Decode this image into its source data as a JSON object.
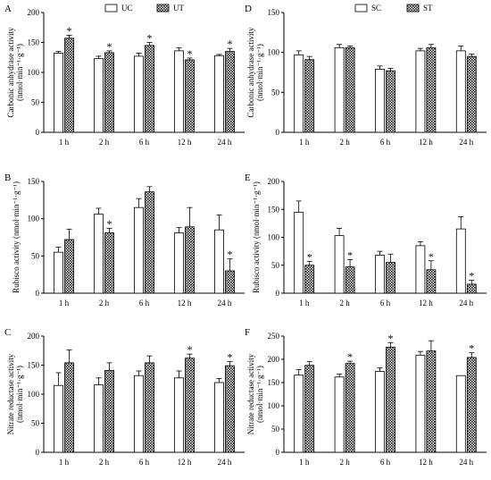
{
  "chart_data": [
    {
      "panel": "A",
      "type": "bar",
      "ylabel": "Carbonic anhydrase activity",
      "ylabel_unit": "(nmol·min⁻¹·g⁻¹)",
      "ylim": [
        0,
        200
      ],
      "yticks": [
        0,
        50,
        100,
        150,
        200
      ],
      "categories": [
        "1 h",
        "2 h",
        "6 h",
        "12 h",
        "24 h"
      ],
      "series": [
        {
          "name": "UC",
          "pattern": "open",
          "values": [
            132,
            123,
            127,
            136,
            128
          ],
          "errors": [
            3,
            4,
            5,
            5,
            2
          ],
          "significant": [
            false,
            false,
            false,
            false,
            false
          ]
        },
        {
          "name": "UT",
          "pattern": "hatched",
          "values": [
            157,
            133,
            145,
            121,
            135
          ],
          "errors": [
            5,
            3,
            5,
            3,
            5
          ],
          "significant": [
            true,
            true,
            true,
            true,
            true
          ]
        }
      ],
      "marker": "*",
      "legend_position": "top"
    },
    {
      "panel": "B",
      "type": "bar",
      "ylabel": "Rubisco activity (nmol·min⁻¹·g⁻¹)",
      "ylim": [
        0,
        150
      ],
      "yticks": [
        0,
        50,
        100,
        150
      ],
      "categories": [
        "1 h",
        "2 h",
        "6 h",
        "12 h",
        "24 h"
      ],
      "series": [
        {
          "name": "UC",
          "pattern": "open",
          "values": [
            55,
            106,
            115,
            81,
            85
          ],
          "errors": [
            7,
            8,
            12,
            7,
            20
          ],
          "significant": [
            false,
            false,
            false,
            false,
            false
          ]
        },
        {
          "name": "UT",
          "pattern": "hatched",
          "values": [
            72,
            81,
            136,
            89,
            30
          ],
          "errors": [
            14,
            6,
            7,
            26,
            16
          ],
          "significant": [
            false,
            true,
            false,
            false,
            true
          ]
        }
      ],
      "marker": "*"
    },
    {
      "panel": "C",
      "type": "bar",
      "ylabel": "Nitrate reductase activity",
      "ylabel_unit": "(nmol·min⁻¹·g⁻¹)",
      "ylim": [
        0,
        200
      ],
      "yticks": [
        0,
        50,
        100,
        150,
        200
      ],
      "categories": [
        "1 h",
        "2 h",
        "6 h",
        "12 h",
        "24 h"
      ],
      "series": [
        {
          "name": "UC",
          "pattern": "open",
          "values": [
            115,
            116,
            132,
            128,
            120
          ],
          "errors": [
            22,
            12,
            8,
            12,
            7
          ],
          "significant": [
            false,
            false,
            false,
            false,
            false
          ]
        },
        {
          "name": "UT",
          "pattern": "hatched",
          "values": [
            154,
            141,
            154,
            162,
            149
          ],
          "errors": [
            22,
            13,
            12,
            7,
            7
          ],
          "significant": [
            false,
            false,
            false,
            true,
            true
          ]
        }
      ],
      "marker": "*"
    },
    {
      "panel": "D",
      "type": "bar",
      "ylabel": "Carbonic anhydrase activity",
      "ylabel_unit": "(nmol·min⁻¹·g⁻¹)",
      "ylim": [
        0,
        150
      ],
      "yticks": [
        0,
        50,
        100,
        150
      ],
      "categories": [
        "1 h",
        "2 h",
        "6 h",
        "12 h",
        "24 h"
      ],
      "series": [
        {
          "name": "SC",
          "pattern": "open",
          "values": [
            97,
            106,
            79,
            102,
            102
          ],
          "errors": [
            5,
            4,
            4,
            3,
            6
          ],
          "significant": [
            false,
            false,
            false,
            false,
            false
          ]
        },
        {
          "name": "ST",
          "pattern": "hatched",
          "values": [
            91,
            106,
            77,
            106,
            95
          ],
          "errors": [
            4,
            2,
            3,
            4,
            3
          ],
          "significant": [
            false,
            false,
            false,
            false,
            false
          ]
        }
      ],
      "marker": "*",
      "legend_position": "top"
    },
    {
      "panel": "E",
      "type": "bar",
      "ylabel": "Rubisco activity (nmol·min⁻¹·g⁻¹)",
      "ylim": [
        0,
        200
      ],
      "yticks": [
        0,
        50,
        100,
        150,
        200
      ],
      "categories": [
        "1 h",
        "2 h",
        "6 h",
        "12 h",
        "24 h"
      ],
      "series": [
        {
          "name": "SC",
          "pattern": "open",
          "values": [
            145,
            103,
            68,
            85,
            115
          ],
          "errors": [
            20,
            13,
            7,
            7,
            22
          ],
          "significant": [
            false,
            false,
            false,
            false,
            false
          ]
        },
        {
          "name": "ST",
          "pattern": "hatched",
          "values": [
            50,
            47,
            55,
            42,
            16
          ],
          "errors": [
            7,
            13,
            15,
            16,
            7
          ],
          "significant": [
            true,
            true,
            false,
            true,
            true
          ]
        }
      ],
      "marker": "*"
    },
    {
      "panel": "F",
      "type": "bar",
      "ylabel": "Nitrate reductase activity",
      "ylabel_unit": "(nmol·min⁻¹·g⁻¹)",
      "ylim": [
        0,
        250
      ],
      "yticks": [
        0,
        50,
        100,
        150,
        200,
        250
      ],
      "categories": [
        "1 h",
        "2 h",
        "6 h",
        "12 h",
        "24 h"
      ],
      "series": [
        {
          "name": "SC",
          "pattern": "open",
          "values": [
            166,
            162,
            174,
            209,
            165
          ],
          "errors": [
            12,
            6,
            8,
            8,
            0
          ],
          "significant": [
            false,
            false,
            false,
            false,
            false
          ]
        },
        {
          "name": "ST",
          "pattern": "hatched",
          "values": [
            187,
            191,
            226,
            218,
            204
          ],
          "errors": [
            8,
            5,
            10,
            22,
            10
          ],
          "significant": [
            false,
            true,
            true,
            false,
            true
          ]
        }
      ],
      "marker": "*"
    }
  ]
}
